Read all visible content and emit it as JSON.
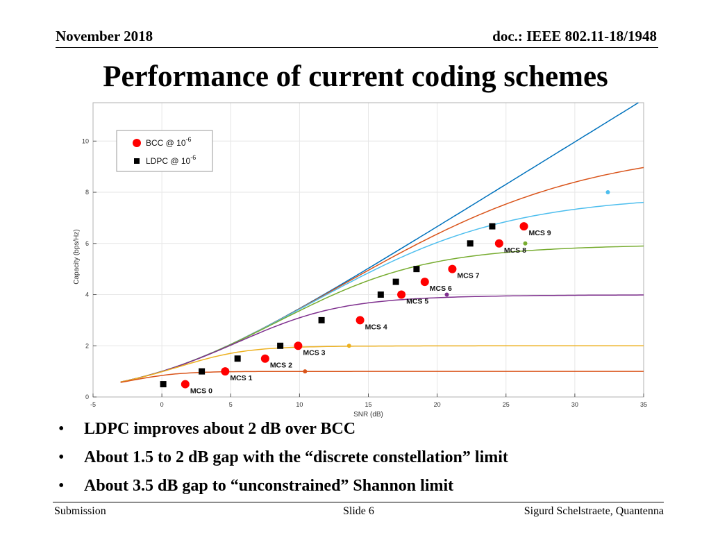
{
  "header": {
    "date": "November 2018",
    "doc_id": "doc.: IEEE 802.11-18/1948"
  },
  "title": "Performance of current coding schemes",
  "bullets": [
    "LDPC improves about 2 dB over BCC",
    "About 1.5 to 2 dB gap with the “discrete constellation” limit",
    "About 3.5 dB gap to “unconstrained” Shannon limit"
  ],
  "footer": {
    "left": "Submission",
    "center": "Slide 6",
    "right": "Sigurd Schelstraete, Quantenna"
  },
  "chart_data": {
    "type": "scatter",
    "xlabel": "SNR (dB)",
    "ylabel": "Capacity (bps/Hz)",
    "xlim": [
      -5,
      35
    ],
    "ylim": [
      0,
      11.5
    ],
    "xticks": [
      -5,
      0,
      5,
      10,
      15,
      20,
      25,
      30,
      35
    ],
    "yticks": [
      0,
      2,
      4,
      6,
      8,
      10
    ],
    "grid": true,
    "legend_position": "top-left",
    "legend": [
      {
        "base": "BCC @ 10",
        "exp": "-6",
        "marker": "circle",
        "color": "#ff0000"
      },
      {
        "base": "LDPC @ 10",
        "exp": "-6",
        "marker": "square",
        "color": "#000000"
      }
    ],
    "curves": [
      {
        "color": "#0072bd",
        "cap": null
      },
      {
        "color": "#d95319",
        "cap": 10
      },
      {
        "color": "#4dbeee",
        "cap": 8
      },
      {
        "color": "#77ac30",
        "cap": 6
      },
      {
        "color": "#7e2f8e",
        "cap": 4
      },
      {
        "color": "#edb120",
        "cap": 2
      },
      {
        "color": "#d95319",
        "cap": 1
      }
    ],
    "curve_markers": [
      {
        "x": 10.4,
        "y": 1,
        "color": "#d95319"
      },
      {
        "x": 13.6,
        "y": 2,
        "color": "#edb120"
      },
      {
        "x": 20.7,
        "y": 4,
        "color": "#7e2f8e"
      },
      {
        "x": 26.4,
        "y": 6,
        "color": "#77ac30"
      },
      {
        "x": 32.4,
        "y": 8,
        "color": "#4dbeee"
      }
    ],
    "bcc": [
      {
        "x": 1.7,
        "y": 0.5,
        "label": "MCS 0"
      },
      {
        "x": 4.6,
        "y": 1.0,
        "label": "MCS 1"
      },
      {
        "x": 7.5,
        "y": 1.5,
        "label": "MCS 2"
      },
      {
        "x": 9.9,
        "y": 2.0,
        "label": "MCS 3"
      },
      {
        "x": 14.4,
        "y": 3.0,
        "label": "MCS 4"
      },
      {
        "x": 17.4,
        "y": 4.0,
        "label": "MCS 5"
      },
      {
        "x": 19.1,
        "y": 4.5,
        "label": "MCS 6"
      },
      {
        "x": 21.1,
        "y": 5.0,
        "label": "MCS 7"
      },
      {
        "x": 24.5,
        "y": 6.0,
        "label": "MCS 8"
      },
      {
        "x": 26.3,
        "y": 6.67,
        "label": "MCS 9"
      }
    ],
    "ldpc": [
      {
        "x": 0.1,
        "y": 0.5
      },
      {
        "x": 2.9,
        "y": 1.0
      },
      {
        "x": 5.5,
        "y": 1.5
      },
      {
        "x": 8.6,
        "y": 2.0
      },
      {
        "x": 11.6,
        "y": 3.0
      },
      {
        "x": 15.9,
        "y": 4.0
      },
      {
        "x": 17.0,
        "y": 4.5
      },
      {
        "x": 18.5,
        "y": 5.0
      },
      {
        "x": 22.4,
        "y": 6.0
      },
      {
        "x": 24.0,
        "y": 6.67
      }
    ]
  }
}
